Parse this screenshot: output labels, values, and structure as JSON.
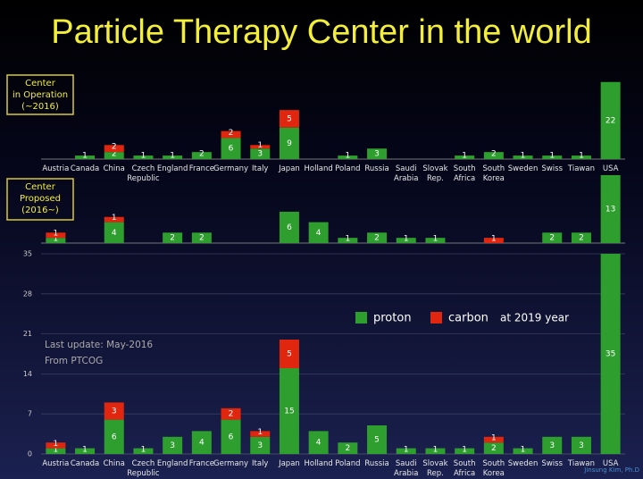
{
  "title": "Particle Therapy Center in the world",
  "chart_data": [
    {
      "type": "bar",
      "stacked": true,
      "label": [
        "Center",
        "in Operation",
        "(~2016)"
      ],
      "categories": [
        "Austria",
        "Canada",
        "China",
        "Czech Republic",
        "England",
        "France",
        "Germany",
        "Italy",
        "Japan",
        "Holland",
        "Poland",
        "Russia",
        "Saudi Arabia",
        "Slovak Rep.",
        "South Africa",
        "South Korea",
        "Sweden",
        "Swiss",
        "Tiawan",
        "USA"
      ],
      "series": [
        {
          "name": "proton",
          "color": "#2e9e2e",
          "values": [
            0,
            1,
            2,
            1,
            1,
            2,
            6,
            3,
            9,
            0,
            1,
            3,
            0,
            0,
            1,
            2,
            1,
            1,
            1,
            22
          ]
        },
        {
          "name": "carbon",
          "color": "#e0260f",
          "values": [
            0,
            0,
            2,
            0,
            0,
            0,
            2,
            1,
            5,
            0,
            0,
            0,
            0,
            0,
            0,
            0,
            0,
            0,
            0,
            0
          ]
        }
      ],
      "ylim": [
        0,
        25
      ]
    },
    {
      "type": "bar",
      "stacked": true,
      "label": [
        "Center",
        "Proposed",
        "(2016~)"
      ],
      "series": [
        {
          "name": "proton",
          "color": "#2e9e2e",
          "values": [
            1,
            0,
            4,
            0,
            2,
            2,
            0,
            0,
            6,
            4,
            1,
            2,
            1,
            1,
            0,
            0,
            0,
            2,
            2,
            13
          ]
        },
        {
          "name": "carbon",
          "color": "#e0260f",
          "values": [
            1,
            0,
            1,
            0,
            0,
            0,
            0,
            0,
            0,
            0,
            0,
            0,
            0,
            0,
            0,
            1,
            0,
            0,
            0,
            0
          ]
        }
      ],
      "ylim": [
        0,
        13
      ]
    },
    {
      "type": "bar",
      "stacked": true,
      "legend": "center",
      "annotation": "at 2019 year",
      "notes": [
        "Last update: May-2016",
        "From PTCOG"
      ],
      "credit": "Jinsung Kim, Ph.D",
      "categories": [
        "Austria",
        "Canada",
        "China",
        "Czech Republic",
        "England",
        "France",
        "Germany",
        "Italy",
        "Japan",
        "Holland",
        "Poland",
        "Russia",
        "Saudi Arabia",
        "Slovak Rep.",
        "South Africa",
        "South Korea",
        "Sweden",
        "Swiss",
        "Tiawan",
        "USA"
      ],
      "series": [
        {
          "name": "proton",
          "color": "#2e9e2e",
          "values": [
            1,
            1,
            6,
            1,
            3,
            4,
            6,
            3,
            15,
            4,
            2,
            5,
            1,
            1,
            1,
            2,
            1,
            3,
            3,
            35
          ]
        },
        {
          "name": "carbon",
          "color": "#e0260f",
          "values": [
            1,
            0,
            3,
            0,
            0,
            0,
            2,
            1,
            5,
            0,
            0,
            0,
            0,
            0,
            0,
            1,
            0,
            0,
            0,
            0
          ]
        }
      ],
      "ylim": [
        0,
        35
      ],
      "yticks": [
        0,
        7,
        14,
        21,
        28,
        35
      ],
      "grid": true
    }
  ]
}
